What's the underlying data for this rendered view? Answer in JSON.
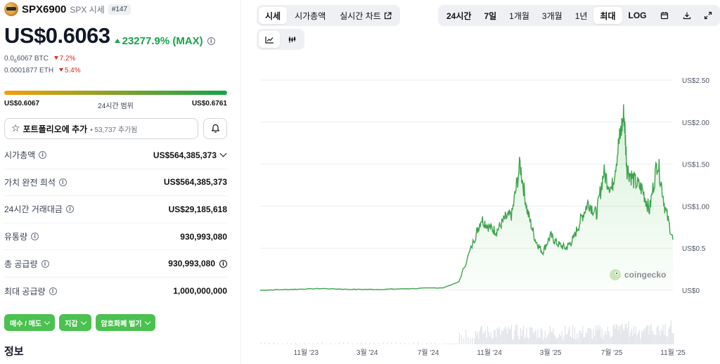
{
  "coin": {
    "name": "SPX6900",
    "symbol_label": "SPX 시세",
    "rank": "#147",
    "price": "US$0.6063",
    "change": "23277.9% (MAX)",
    "btc_prefix": "0.0",
    "btc_subscript": "6",
    "btc_rest": "6067 BTC",
    "btc_change": "7.2%",
    "eth_price": "0.0001877 ETH",
    "eth_change": "5.4%"
  },
  "range": {
    "low": "US$0.6067",
    "label": "24시간 범위",
    "high": "US$0.6761",
    "fill_fraction": 1.0
  },
  "portfolio": {
    "add_label": "포트폴리오에 추가",
    "count": "53,737 추가됨"
  },
  "stats": [
    {
      "label": "시가총액",
      "value": "US$564,385,373"
    },
    {
      "label": "가치 완전 희석",
      "value": "US$564,385,373"
    },
    {
      "label": "24시간 거래대금",
      "value": "US$29,185,618"
    },
    {
      "label": "유통량",
      "value": "930,993,080"
    },
    {
      "label": "총 공급량",
      "value": "930,993,080"
    },
    {
      "label": "최대 공급량",
      "value": "1,000,000,000"
    }
  ],
  "actions": {
    "buy_sell": "매수 / 매도",
    "wallet": "지갑",
    "earn": "암호화폐 벌기"
  },
  "info_heading": "정보",
  "chart_tabs": {
    "price": "시세",
    "market_cap": "시가총액",
    "live_chart": "실시간 차트"
  },
  "time_tabs": {
    "d1": "24시간",
    "d7": "7일",
    "m1": "1개월",
    "m3": "3개월",
    "y1": "1년",
    "max": "최대",
    "log": "LOG"
  },
  "watermark": "coingecko",
  "colors": {
    "accent_green": "#4bc14f",
    "line_green": "#3fa34d",
    "positive": "#16a34a",
    "negative": "#dc2626"
  },
  "chart_data": {
    "type": "area",
    "title": "",
    "xlabel": "",
    "ylabel": "",
    "ylim": [
      0,
      2.5
    ],
    "y_ticks": [
      "US$0",
      "US$0.5",
      "US$1.00",
      "US$1.50",
      "US$2.00",
      "US$2.50"
    ],
    "y_tick_values": [
      0,
      0.5,
      1.0,
      1.5,
      2.0,
      2.5
    ],
    "x_ticks": [
      "11월 '23",
      "3월 '24",
      "7월 '24",
      "11월 '24",
      "3월 '25",
      "7월 '25",
      "11월 '25"
    ],
    "x_tick_values": [
      "2023-11",
      "2024-03",
      "2024-07",
      "2024-11",
      "2025-03",
      "2025-07",
      "2025-11"
    ],
    "series": [
      {
        "x": [
          "2023-08",
          "2023-10",
          "2023-12",
          "2024-02",
          "2024-04",
          "2024-06",
          "2024-08",
          "2024-09",
          "2024-10",
          "2024-10-15",
          "2024-11",
          "2024-11-15",
          "2024-12",
          "2024-12-15",
          "2025-01",
          "2025-01-15",
          "2025-02",
          "2025-02-15",
          "2025-03",
          "2025-03-15",
          "2025-04",
          "2025-04-15",
          "2025-05",
          "2025-05-15",
          "2025-06",
          "2025-06-15",
          "2025-07",
          "2025-07-15",
          "2025-07-25",
          "2025-08",
          "2025-08-15",
          "2025-09",
          "2025-09-15",
          "2025-10",
          "2025-10-15",
          "2025-11"
        ],
        "values": [
          0.0,
          0.01,
          0.02,
          0.01,
          0.01,
          0.02,
          0.03,
          0.1,
          0.6,
          0.85,
          0.75,
          0.7,
          0.85,
          0.9,
          1.5,
          0.95,
          0.6,
          0.45,
          0.65,
          0.55,
          0.5,
          0.6,
          0.85,
          1.05,
          0.9,
          1.4,
          1.2,
          1.75,
          2.1,
          1.45,
          1.3,
          1.2,
          0.95,
          1.55,
          1.0,
          0.6
        ]
      }
    ],
    "volume_note": ""
  }
}
